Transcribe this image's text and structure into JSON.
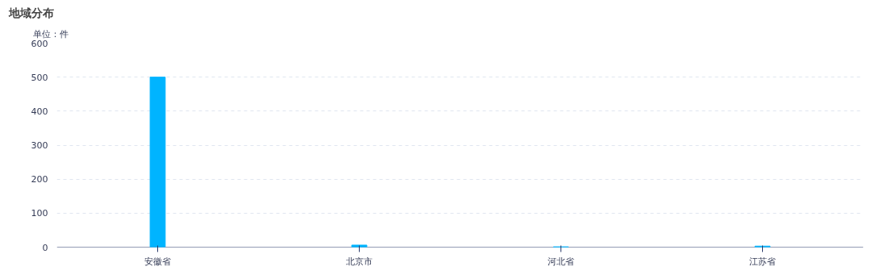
{
  "chart_data": {
    "type": "bar",
    "title": "地域分布",
    "ylabel": "单位：件",
    "categories": [
      "安徽省",
      "北京市",
      "河北省",
      "江苏省"
    ],
    "values": [
      500,
      6,
      1,
      3
    ],
    "color": "#00b4ff",
    "ylim": [
      0,
      600
    ],
    "yticks": [
      0,
      100,
      200,
      300,
      400,
      500,
      600
    ],
    "grid": "y"
  }
}
